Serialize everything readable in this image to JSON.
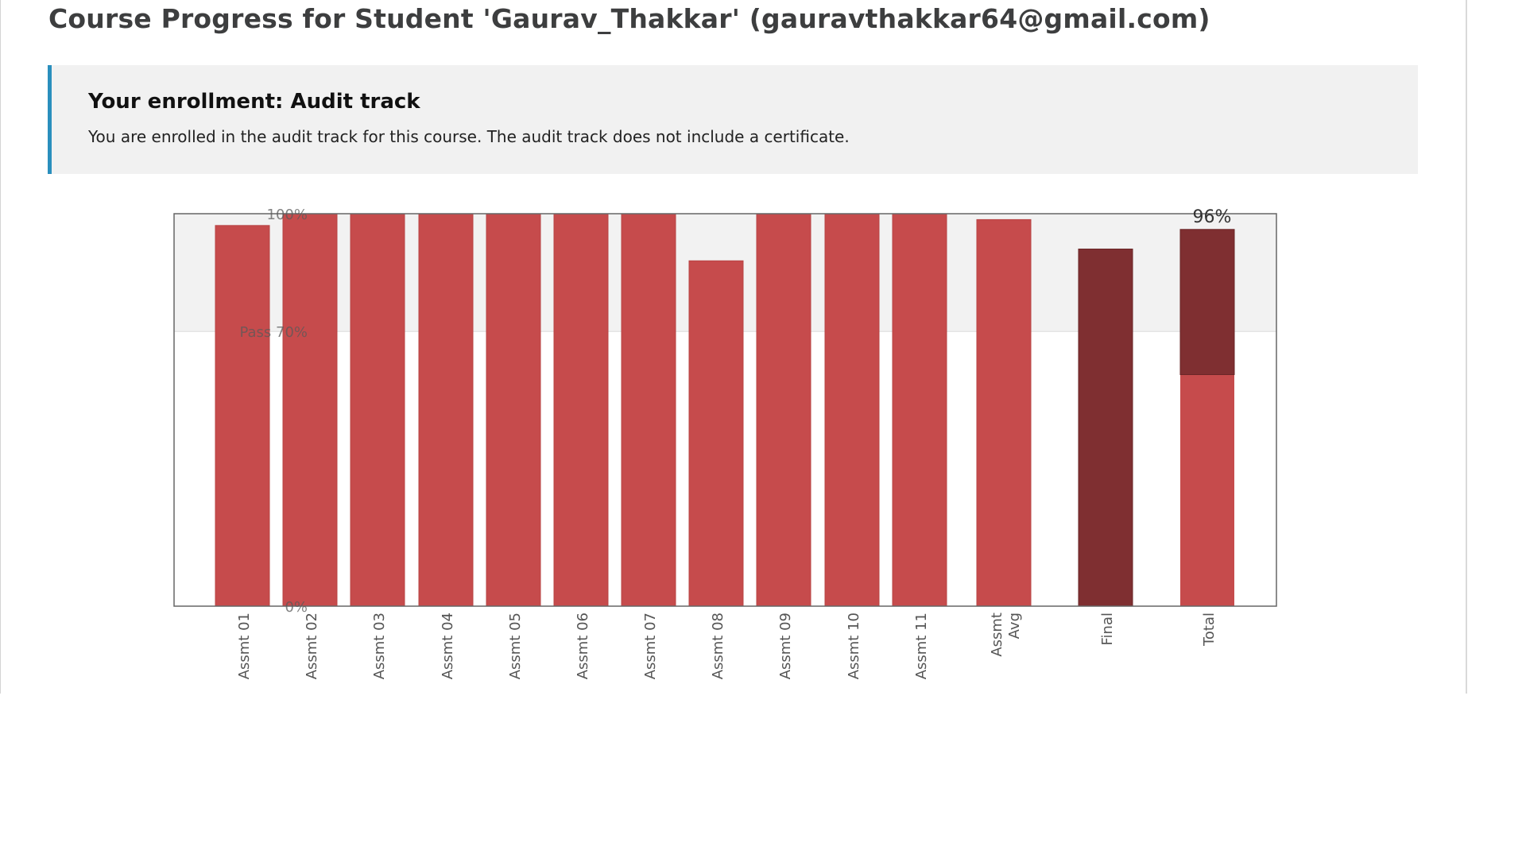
{
  "page": {
    "title": "Course Progress for Student 'Gaurav_Thakkar' (gauravthakkar64@gmail.com)"
  },
  "enrollment": {
    "title": "Your enrollment: Audit track",
    "message": "You are enrolled in the audit track for this course. The audit track does not include a certificate."
  },
  "colors": {
    "bar": "#c64b4c",
    "bar_dark": "#7f2f31",
    "pass_region": "#f2f2f2",
    "enrollment_accent": "#2a8fbd"
  },
  "chart_data": {
    "type": "bar",
    "categories": [
      "Assmt 01",
      "Assmt 02",
      "Assmt 03",
      "Assmt 04",
      "Assmt 05",
      "Assmt 06",
      "Assmt 07",
      "Assmt 08",
      "Assmt 09",
      "Assmt 10",
      "Assmt 11",
      "Assmt Avg",
      "Final",
      "Total"
    ],
    "values": [
      97,
      100,
      100,
      100,
      100,
      100,
      100,
      88,
      100,
      100,
      100,
      98.5,
      91,
      96
    ],
    "total_segments": [
      {
        "part": "lower",
        "value": 59,
        "color": "#c64b4c"
      },
      {
        "part": "upper",
        "value": 37,
        "color": "#7f2f31"
      }
    ],
    "ylim": [
      0,
      100
    ],
    "y_ticks": [
      {
        "value": 0,
        "label": "0%"
      },
      {
        "value": 70,
        "label": "Pass 70%"
      },
      {
        "value": 100,
        "label": "100%"
      }
    ],
    "pass_threshold": 70,
    "total_label": "96%",
    "grid": false
  }
}
